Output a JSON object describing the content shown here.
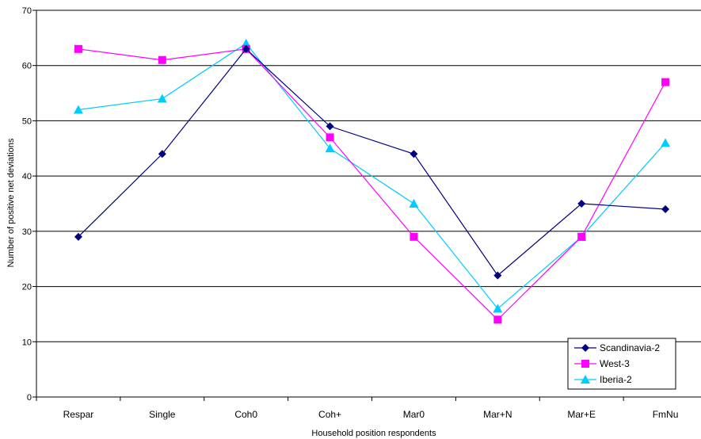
{
  "chart_data": {
    "type": "line",
    "title": "",
    "xlabel": "Household position respondents",
    "ylabel": "Number of positive net deviations",
    "categories": [
      "Respar",
      "Single",
      "Coh0",
      "Coh+",
      "Mar0",
      "Mar+N",
      "Mar+E",
      "FmNu"
    ],
    "ylim": [
      0,
      70
    ],
    "yticks": [
      0,
      10,
      20,
      30,
      40,
      50,
      60,
      70
    ],
    "grid": "horizontal",
    "legend_position": "bottom-right",
    "series": [
      {
        "name": "Scandinavia-2",
        "color": "#000080",
        "marker": "diamond",
        "values": [
          29,
          44,
          63,
          49,
          44,
          22,
          35,
          34
        ]
      },
      {
        "name": "West-3",
        "color": "#FF00FF",
        "marker": "square",
        "values": [
          63,
          61,
          63,
          47,
          29,
          14,
          29,
          57
        ]
      },
      {
        "name": "Iberia-2",
        "color": "#00CCFF",
        "marker": "triangle",
        "values": [
          52,
          54,
          64,
          45,
          35,
          16,
          29,
          46
        ]
      }
    ]
  }
}
